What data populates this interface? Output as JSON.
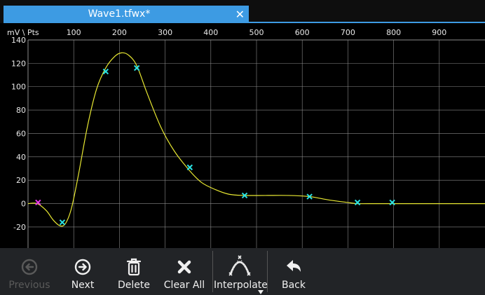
{
  "tab": {
    "title": "Wave1.tfwx*",
    "close_glyph": "✕"
  },
  "colors": {
    "accent": "#3d9be3",
    "curve": "#e8e832",
    "marker": "#29e3e3",
    "marker_first": "#e83ae8",
    "grid": "#8a8a8a"
  },
  "toolbar": {
    "previous": {
      "label": "Previous",
      "icon": "arrow-left-circle-icon",
      "disabled": true
    },
    "next": {
      "label": "Next",
      "icon": "arrow-right-circle-icon",
      "disabled": false
    },
    "delete": {
      "label": "Delete",
      "icon": "trash-icon",
      "disabled": false
    },
    "clear_all": {
      "label": "Clear All",
      "icon": "x-icon",
      "disabled": false
    },
    "interpolate": {
      "label": "Interpolate",
      "icon": "interpolate-curve-icon",
      "disabled": false
    },
    "back": {
      "label": "Back",
      "icon": "back-arrow-icon",
      "disabled": false
    }
  },
  "chart_data": {
    "type": "line",
    "axis_corner_label": "mV \\ Pts",
    "x_ticks": [
      100,
      200,
      300,
      400,
      500,
      600,
      700,
      800,
      900
    ],
    "y_ticks": [
      -20,
      0,
      20,
      40,
      60,
      80,
      100,
      120,
      140
    ],
    "xlim": [
      0,
      1000
    ],
    "ylim": [
      -38,
      140
    ],
    "grid": true,
    "points": [
      {
        "x": 22,
        "y": 1
      },
      {
        "x": 75,
        "y": -16
      },
      {
        "x": 170,
        "y": 113
      },
      {
        "x": 238,
        "y": 116
      },
      {
        "x": 354,
        "y": 31
      },
      {
        "x": 474,
        "y": 7
      },
      {
        "x": 616,
        "y": 6
      },
      {
        "x": 721,
        "y": 1
      },
      {
        "x": 797,
        "y": 1
      }
    ],
    "curve": [
      [
        0,
        0
      ],
      [
        20,
        0
      ],
      [
        40,
        -6
      ],
      [
        55,
        -14
      ],
      [
        70,
        -19
      ],
      [
        82,
        -17
      ],
      [
        95,
        -4
      ],
      [
        110,
        24
      ],
      [
        130,
        66
      ],
      [
        150,
        98
      ],
      [
        170,
        116
      ],
      [
        190,
        126
      ],
      [
        205,
        129
      ],
      [
        220,
        127
      ],
      [
        238,
        118
      ],
      [
        260,
        95
      ],
      [
        290,
        66
      ],
      [
        320,
        45
      ],
      [
        354,
        28
      ],
      [
        380,
        18
      ],
      [
        410,
        12
      ],
      [
        440,
        8
      ],
      [
        474,
        7
      ],
      [
        520,
        7
      ],
      [
        570,
        7
      ],
      [
        616,
        6
      ],
      [
        660,
        3
      ],
      [
        700,
        1
      ],
      [
        721,
        0
      ],
      [
        760,
        0
      ],
      [
        797,
        0
      ],
      [
        850,
        0
      ],
      [
        900,
        0
      ],
      [
        1000,
        0
      ]
    ]
  }
}
